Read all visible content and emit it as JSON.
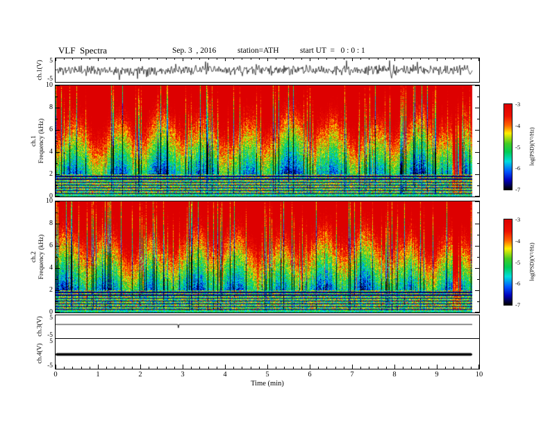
{
  "header": {
    "title": "VLF  Spectra",
    "date": "Sep. 3  , 2016",
    "station": "station=ATH",
    "start_ut": "start UT  =   0 : 0 : 1"
  },
  "xaxis": {
    "label": "Time (min)",
    "ticks": [
      0,
      1,
      2,
      3,
      4,
      5,
      6,
      7,
      8,
      9,
      10
    ],
    "range": [
      0,
      10
    ],
    "minor_step": 0.2
  },
  "panels": {
    "ch1_wave": {
      "label": "ch.1(V)",
      "ylim": [
        -5,
        5
      ],
      "ytick_labels": [
        "5",
        "-5"
      ]
    },
    "ch1_spec": {
      "channel": "ch.1",
      "ylabel": "Frequency (kHz)",
      "yticks": [
        10,
        8,
        6,
        4,
        2,
        0
      ]
    },
    "ch2_spec": {
      "channel": "ch.2",
      "ylabel": "Frequency (kHz)",
      "yticks": [
        10,
        8,
        6,
        4,
        2,
        0
      ]
    },
    "ch3_wave": {
      "label": "ch.3(V)",
      "ylim": [
        -5,
        5
      ],
      "ytick_labels": [
        "5",
        "-5"
      ]
    },
    "ch4_wave": {
      "label": "ch.4(V)",
      "ylim": [
        -5,
        5
      ],
      "ytick_labels": [
        "5",
        "-5"
      ]
    }
  },
  "colorbar": {
    "label": "log(PSD)(V²/Hz)",
    "ticks": [
      "-3",
      "-4",
      "-5",
      "-6",
      "-7"
    ],
    "gradient": [
      [
        0,
        "#dd0000"
      ],
      [
        0.14,
        "#ee1100"
      ],
      [
        0.25,
        "#ff6600"
      ],
      [
        0.34,
        "#ffee00"
      ],
      [
        0.46,
        "#44cc22"
      ],
      [
        0.56,
        "#00cc55"
      ],
      [
        0.67,
        "#00dddd"
      ],
      [
        0.79,
        "#0055ff"
      ],
      [
        0.89,
        "#0000bb"
      ],
      [
        1,
        "#000000"
      ]
    ]
  },
  "chart_data": [
    {
      "type": "line",
      "name": "ch.1 raw voltage",
      "panel_label": "ch.1(V)",
      "xlim": [
        0,
        10
      ],
      "ylim": [
        -5,
        5
      ],
      "x_end_min": 9.85,
      "baseline_v": 0,
      "typical_amplitude_v": 2,
      "spike_amplitude_v": 4.5,
      "description": "dense black broadband noise centered at 0 V, typical band ±2 V with frequent spikes toward ±4 V, spanning 0 to ~9.85 min"
    },
    {
      "type": "heatmap",
      "name": "ch.1 spectrogram",
      "xlabel": "Time (min)",
      "ylabel": "Frequency (kHz)",
      "xlim": [
        0,
        10
      ],
      "ylim": [
        0,
        10
      ],
      "zlabel": "log(PSD)(V²/Hz)",
      "zlim": [
        -7,
        -3
      ],
      "x_end_min": 9.85,
      "colormap": "rainbow: red = high PSD (-3), green/cyan mid (-5), blue low (-6), black lowest (-7)",
      "freq_profile": [
        {
          "freq_khz": 10,
          "psd": -3.2
        },
        {
          "freq_khz": 8,
          "psd": -3.3
        },
        {
          "freq_khz": 6,
          "psd": -3.7
        },
        {
          "freq_khz": 5,
          "psd": -4.1
        },
        {
          "freq_khz": 4,
          "psd": -4.6
        },
        {
          "freq_khz": 3,
          "psd": -5.1
        },
        {
          "freq_khz": 2,
          "psd": -5.3
        },
        {
          "freq_khz": 1,
          "psd": -4.9
        },
        {
          "freq_khz": 0.3,
          "psd": -4.8
        }
      ],
      "harmonic_line_freqs_khz": [
        0.3,
        0.55,
        0.8,
        1.05,
        1.3,
        1.6,
        1.85
      ],
      "burst_period_min": 1.0,
      "transition_freq_range_khz": [
        2.5,
        5.6
      ],
      "features": [
        "quasi-periodic vertical burst striations roughly every 1 min",
        "dark horizontal power-line harmonic lines below 2 kHz",
        "saturated red column cluster near t ≈ 9.6 min"
      ]
    },
    {
      "type": "heatmap",
      "name": "ch.2 spectrogram",
      "xlabel": "Time (min)",
      "ylabel": "Frequency (kHz)",
      "xlim": [
        0,
        10
      ],
      "ylim": [
        0,
        10
      ],
      "zlabel": "log(PSD)(V²/Hz)",
      "zlim": [
        -7,
        -3
      ],
      "x_end_min": 9.85,
      "colormap": "rainbow: red = high PSD (-3), green/cyan mid (-5), blue low (-6), black lowest (-7)",
      "freq_profile": [
        {
          "freq_khz": 10,
          "psd": -3.2
        },
        {
          "freq_khz": 8,
          "psd": -3.3
        },
        {
          "freq_khz": 6,
          "psd": -3.7
        },
        {
          "freq_khz": 5,
          "psd": -4.1
        },
        {
          "freq_khz": 4,
          "psd": -4.6
        },
        {
          "freq_khz": 3,
          "psd": -5.1
        },
        {
          "freq_khz": 2,
          "psd": -5.3
        },
        {
          "freq_khz": 1,
          "psd": -4.9
        },
        {
          "freq_khz": 0.3,
          "psd": -4.8
        }
      ],
      "harmonic_line_freqs_khz": [
        0.3,
        0.55,
        0.8,
        1.05,
        1.3,
        1.6,
        1.85
      ],
      "burst_period_min": 1.0,
      "transition_freq_range_khz": [
        2.5,
        5.6
      ],
      "features": [
        "nearly identical structure to ch.1 spectrogram",
        "dark horizontal harmonic lines below 2 kHz",
        "saturated red column cluster near t ≈ 9.6 min"
      ]
    },
    {
      "type": "line",
      "name": "ch.3 raw voltage",
      "panel_label": "ch.3(V)",
      "xlim": [
        0,
        10
      ],
      "ylim": [
        -5,
        5
      ],
      "x_end_min": 9.85,
      "value_v": 1.0,
      "dip_t_min": 2.9,
      "dip_v": -0.5,
      "description": "thin flat trace at ≈ +1 V with one brief downward blip near t ≈ 2.9 min"
    },
    {
      "type": "line",
      "name": "ch.4 raw voltage",
      "panel_label": "ch.4(V)",
      "xlim": [
        0,
        10
      ],
      "ylim": [
        -5,
        5
      ],
      "x_end_min": 9.85,
      "value_v": -0.2,
      "line_thickness_v": 0.9,
      "description": "thick saturated flat black trace slightly below 0 V spanning the full record"
    }
  ]
}
